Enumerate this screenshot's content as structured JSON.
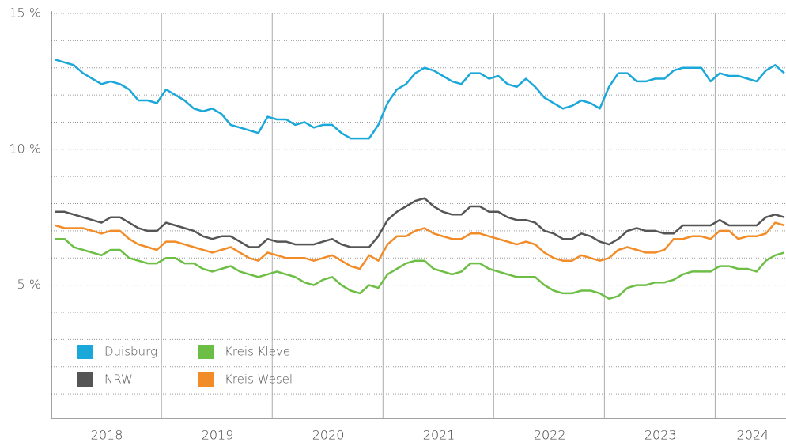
{
  "chart_data": {
    "type": "line",
    "categories": [
      null,
      null,
      null,
      null,
      null,
      null,
      "2018",
      null,
      null,
      null,
      null,
      null,
      null,
      null,
      null,
      null,
      null,
      null,
      "2019",
      null,
      null,
      null,
      null,
      null,
      null,
      null,
      null,
      null,
      null,
      null,
      "2020",
      null,
      null,
      null,
      null,
      null,
      null,
      null,
      null,
      null,
      null,
      null,
      "2021",
      null,
      null,
      null,
      null,
      null,
      null,
      null,
      null,
      null,
      null,
      null,
      "2022",
      null,
      null,
      null,
      null,
      null,
      null,
      null,
      null,
      null,
      null,
      null,
      "2023",
      null,
      null,
      null,
      null,
      null,
      null,
      null,
      null,
      null,
      "2024",
      null,
      null,
      null
    ],
    "series": [
      {
        "name": "Duisburg",
        "color": "#1aa7d9",
        "values": [
          13.3,
          13.2,
          13.1,
          12.8,
          12.6,
          12.4,
          12.5,
          12.4,
          12.2,
          11.8,
          11.8,
          11.7,
          12.2,
          12.0,
          11.8,
          11.5,
          11.4,
          11.5,
          11.3,
          10.9,
          10.8,
          10.7,
          10.6,
          11.2,
          11.1,
          11.1,
          10.9,
          11.0,
          10.8,
          10.9,
          10.9,
          10.6,
          10.4,
          10.4,
          10.4,
          10.9,
          11.7,
          12.2,
          12.4,
          12.8,
          13.0,
          12.9,
          12.7,
          12.5,
          12.4,
          12.8,
          12.8,
          12.6,
          12.7,
          12.4,
          12.3,
          12.6,
          12.3,
          11.9,
          11.7,
          11.5,
          11.6,
          11.8,
          11.7,
          11.5,
          12.3,
          12.8,
          12.8,
          12.5,
          12.5,
          12.6,
          12.6,
          12.9,
          13.0,
          13.0,
          13.0,
          12.5,
          12.8,
          12.7,
          12.7,
          12.6,
          12.5,
          12.9,
          13.1,
          12.8
        ]
      },
      {
        "name": "NRW",
        "color": "#555555",
        "values": [
          7.7,
          7.7,
          7.6,
          7.5,
          7.4,
          7.3,
          7.5,
          7.5,
          7.3,
          7.1,
          7.0,
          7.0,
          7.3,
          7.2,
          7.1,
          7.0,
          6.8,
          6.7,
          6.8,
          6.8,
          6.6,
          6.4,
          6.4,
          6.7,
          6.6,
          6.6,
          6.5,
          6.5,
          6.5,
          6.6,
          6.7,
          6.5,
          6.4,
          6.4,
          6.4,
          6.8,
          7.4,
          7.7,
          7.9,
          8.1,
          8.2,
          7.9,
          7.7,
          7.6,
          7.6,
          7.9,
          7.9,
          7.7,
          7.7,
          7.5,
          7.4,
          7.4,
          7.3,
          7.0,
          6.9,
          6.7,
          6.7,
          6.9,
          6.8,
          6.6,
          6.5,
          6.7,
          7.0,
          7.1,
          7.0,
          7.0,
          6.9,
          6.9,
          7.2,
          7.2,
          7.2,
          7.2,
          7.4,
          7.2,
          7.2,
          7.2,
          7.2,
          7.5,
          7.6,
          7.5
        ]
      },
      {
        "name": "Kreis Kleve",
        "color": "#6dbe45",
        "values": [
          6.7,
          6.7,
          6.4,
          6.3,
          6.2,
          6.1,
          6.3,
          6.3,
          6.0,
          5.9,
          5.8,
          5.8,
          6.0,
          6.0,
          5.8,
          5.8,
          5.6,
          5.5,
          5.6,
          5.7,
          5.5,
          5.4,
          5.3,
          5.4,
          5.5,
          5.4,
          5.3,
          5.1,
          5.0,
          5.2,
          5.3,
          5.0,
          4.8,
          4.7,
          5.0,
          4.9,
          5.4,
          5.6,
          5.8,
          5.9,
          5.9,
          5.6,
          5.5,
          5.4,
          5.5,
          5.8,
          5.8,
          5.6,
          5.5,
          5.4,
          5.3,
          5.3,
          5.3,
          5.0,
          4.8,
          4.7,
          4.7,
          4.8,
          4.8,
          4.7,
          4.5,
          4.6,
          4.9,
          5.0,
          5.0,
          5.1,
          5.1,
          5.2,
          5.4,
          5.5,
          5.5,
          5.5,
          5.7,
          5.7,
          5.6,
          5.6,
          5.5,
          5.9,
          6.1,
          6.2
        ]
      },
      {
        "name": "Kreis Wesel",
        "color": "#f28c28",
        "values": [
          7.2,
          7.1,
          7.1,
          7.1,
          7.0,
          6.9,
          7.0,
          7.0,
          6.7,
          6.5,
          6.4,
          6.3,
          6.6,
          6.6,
          6.5,
          6.4,
          6.3,
          6.2,
          6.3,
          6.4,
          6.2,
          6.0,
          5.9,
          6.2,
          6.1,
          6.0,
          6.0,
          6.0,
          5.9,
          6.0,
          6.1,
          5.9,
          5.7,
          5.6,
          6.1,
          5.9,
          6.5,
          6.8,
          6.8,
          7.0,
          7.1,
          6.9,
          6.8,
          6.7,
          6.7,
          6.9,
          6.9,
          6.8,
          6.7,
          6.6,
          6.5,
          6.6,
          6.5,
          6.2,
          6.0,
          5.9,
          5.9,
          6.1,
          6.0,
          5.9,
          6.0,
          6.3,
          6.4,
          6.3,
          6.2,
          6.2,
          6.3,
          6.7,
          6.7,
          6.8,
          6.8,
          6.7,
          7.0,
          7.0,
          6.7,
          6.8,
          6.8,
          6.9,
          7.3,
          7.2
        ]
      }
    ],
    "ylim": [
      0.1,
      15
    ],
    "yticks": [
      {
        "value": 5,
        "label": "5 %"
      },
      {
        "value": 10,
        "label": "10 %"
      },
      {
        "value": 15,
        "label": "15 %"
      }
    ],
    "minor_yticks": [
      1,
      2,
      3,
      4,
      6,
      7,
      8,
      9,
      11,
      12,
      13,
      14
    ],
    "grid": true,
    "legend": "lower left"
  }
}
